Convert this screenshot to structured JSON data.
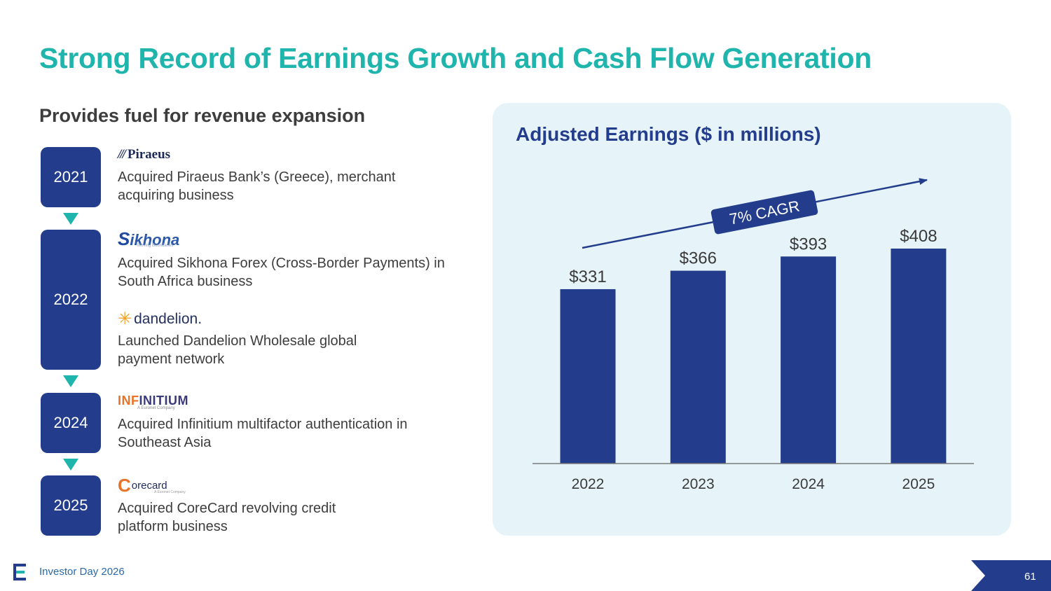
{
  "title": "Strong Record of Earnings Growth and Cash Flow Generation",
  "subtitle": "Provides fuel for revenue expansion",
  "timeline": {
    "years": [
      "2021",
      "2022",
      "2024",
      "2025"
    ],
    "logos": {
      "piraeus": "Piraeus",
      "sikhona": "ikhona",
      "sikhona_tagline": "Moving Boundaries",
      "dandelion": "dandelion.",
      "infinitium_prefix": "INF",
      "infinitium_rest": "INITIUM",
      "infinitium_tagline": "A Euronet Company",
      "corecard": "orecard",
      "corecard_tagline": "A Euronet Company"
    },
    "descriptions": [
      "Acquired Piraeus Bank’s (Greece), merchant acquiring business",
      "Acquired Sikhona Forex (Cross-Border Payments) in South Africa business",
      "Launched Dandelion Wholesale global payment network",
      "Acquired Infinitium multifactor authentication in Southeast Asia",
      "Acquired CoreCard revolving credit platform business"
    ]
  },
  "colors": {
    "accent_teal": "#1fb5ad",
    "navy": "#233d8c",
    "panel_bg": "#e6f4f9"
  },
  "chart_data": {
    "type": "bar",
    "title": "Adjusted Earnings ($ in millions)",
    "categories": [
      "2022",
      "2023",
      "2024",
      "2025"
    ],
    "values": [
      331,
      366,
      393,
      408
    ],
    "value_labels": [
      "$331",
      "$366",
      "$393",
      "$408"
    ],
    "ylim": [
      0,
      408
    ],
    "annotation": "7% CAGR",
    "bar_color": "#233d8c",
    "grid": false
  },
  "footer": {
    "text": "Investor Day 2026",
    "page_number": "61"
  }
}
